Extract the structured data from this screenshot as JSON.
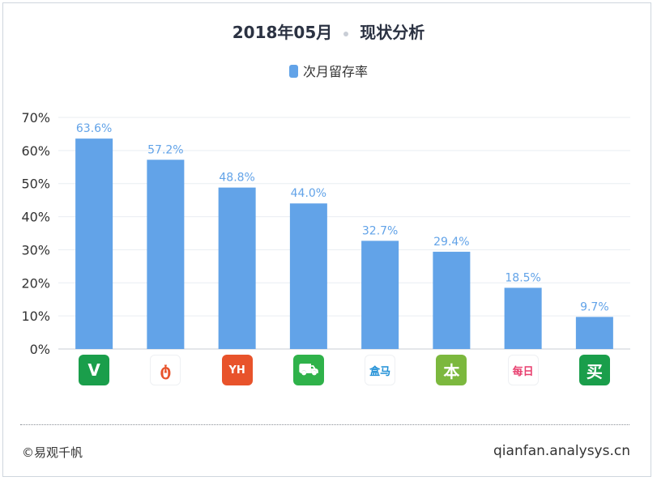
{
  "header": {
    "date": "2018年05月",
    "subtitle": "现状分析"
  },
  "footer": {
    "left": "©易观千帆",
    "right": "qianfan.analysys.cn"
  },
  "colors": {
    "bar": "#62a3e8",
    "label": "#62a3e8",
    "grid": "#e9edf2",
    "axis_text": "#333333"
  },
  "apps": [
    {
      "icon": "fruit-app-icon",
      "bg": "#1a9e4b",
      "fg": "#ffffff",
      "glyph": "V"
    },
    {
      "icon": "drop-app-icon",
      "bg": "#ffffff",
      "fg": "#e8532b",
      "glyph": "ტ"
    },
    {
      "icon": "yh-app-icon",
      "bg": "#e8532b",
      "fg": "#ffffff",
      "glyph": "YH"
    },
    {
      "icon": "cart-app-icon",
      "bg": "#2fb24a",
      "fg": "#ffffff",
      "glyph": "⛟"
    },
    {
      "icon": "hema-app-icon",
      "bg": "#ffffff",
      "fg": "#1f8fd6",
      "glyph": "盒马"
    },
    {
      "icon": "ben-app-icon",
      "bg": "#7cb83e",
      "fg": "#ffffff",
      "glyph": "本"
    },
    {
      "icon": "daily-app-icon",
      "bg": "#ffffff",
      "fg": "#e83e6e",
      "glyph": "每日"
    },
    {
      "icon": "mai-app-icon",
      "bg": "#1a9e4b",
      "fg": "#ffffff",
      "glyph": "买"
    }
  ],
  "chart_data": {
    "type": "bar",
    "legend": [
      "次月留存率"
    ],
    "series": [
      {
        "name": "次月留存率",
        "values": [
          63.6,
          57.2,
          48.8,
          44.0,
          32.7,
          29.4,
          18.5,
          9.7
        ]
      }
    ],
    "value_labels": [
      "63.6%",
      "57.2%",
      "48.8%",
      "44.0%",
      "32.7%",
      "29.4%",
      "18.5%",
      "9.7%"
    ],
    "ylim": [
      0,
      70
    ],
    "yticks": [
      "0%",
      "10%",
      "20%",
      "30%",
      "40%",
      "50%",
      "60%",
      "70%"
    ],
    "grid": true,
    "legend_position": "top-center"
  }
}
